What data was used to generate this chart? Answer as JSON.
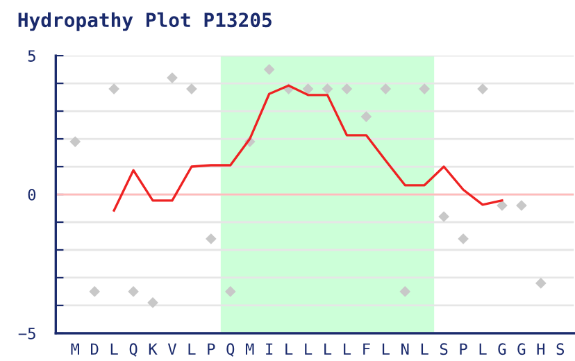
{
  "chart_data": {
    "type": "line",
    "title": "Hydropathy Plot P13205",
    "categories": [
      "M",
      "D",
      "L",
      "Q",
      "K",
      "V",
      "L",
      "P",
      "Q",
      "M",
      "I",
      "L",
      "L",
      "L",
      "L",
      "F",
      "L",
      "N",
      "L",
      "S",
      "P",
      "L",
      "G",
      "G",
      "H",
      "S"
    ],
    "series": [
      {
        "type": "scatter",
        "color": "#c8c8c8",
        "marker": "diamond",
        "values": [
          1.9,
          -3.5,
          3.8,
          -3.5,
          -3.9,
          4.2,
          3.8,
          -1.6,
          -3.5,
          1.9,
          4.5,
          3.8,
          3.8,
          3.8,
          3.8,
          2.8,
          3.8,
          -3.5,
          3.8,
          -0.8,
          -1.6,
          3.8,
          -0.4,
          -0.4,
          -3.2,
          null
        ]
      },
      {
        "color": "#ee2222",
        "values": [
          null,
          null,
          -0.58,
          0.87,
          -0.22,
          -0.22,
          1.0,
          1.05,
          1.05,
          2.0,
          3.62,
          3.92,
          3.58,
          3.58,
          2.13,
          2.13,
          1.22,
          0.33,
          0.33,
          1.0,
          0.17,
          -0.37,
          -0.22,
          null,
          null,
          null
        ]
      }
    ],
    "ylim": [
      -5,
      5
    ],
    "yticks": [
      -5,
      {
        "value": -4,
        "label": null
      },
      {
        "value": -3,
        "label": null
      },
      {
        "value": -2,
        "label": null
      },
      {
        "value": -1,
        "label": null
      },
      0,
      {
        "value": 1,
        "label": null
      },
      {
        "value": 2,
        "label": null
      },
      {
        "value": 3,
        "label": null
      },
      {
        "value": 4,
        "label": null
      },
      5
    ],
    "grid": "y",
    "ref_lines": [
      {
        "axis": "y",
        "value": 0,
        "color": "#ffbbbb"
      }
    ],
    "legend": false
  }
}
